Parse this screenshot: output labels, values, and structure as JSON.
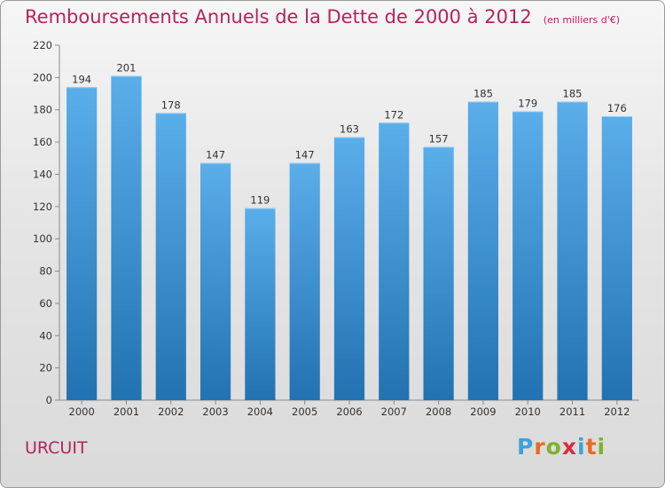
{
  "header": {
    "title": "Remboursements Annuels de la Dette de 2000 à 2012",
    "unit": "(en milliers d'€)"
  },
  "footer": {
    "location": "URCUIT",
    "brand": "Proxiti"
  },
  "colors": {
    "title": "#b4245e",
    "bar_light": "#5aaeea",
    "bar_dark": "#2272b2",
    "axis": "#8a8a8a",
    "text": "#333333",
    "brand_letters": [
      "#3fa2d8",
      "#e76b22",
      "#7cb32d",
      "#d62f3d",
      "#3fa2d8",
      "#e76b22",
      "#7cb32d"
    ]
  },
  "chart_data": {
    "type": "bar",
    "title": "Remboursements Annuels de la Dette de 2000 à 2012",
    "xlabel": "",
    "ylabel": "",
    "categories": [
      "2000",
      "2001",
      "2002",
      "2003",
      "2004",
      "2005",
      "2006",
      "2007",
      "2008",
      "2009",
      "2010",
      "2011",
      "2012"
    ],
    "values": [
      194,
      201,
      178,
      147,
      119,
      147,
      163,
      172,
      157,
      185,
      179,
      185,
      176
    ],
    "ylim": [
      0,
      220
    ],
    "yticks": [
      0,
      20,
      40,
      60,
      80,
      100,
      120,
      140,
      160,
      180,
      200,
      220
    ],
    "grid": false,
    "data_labels": true
  }
}
